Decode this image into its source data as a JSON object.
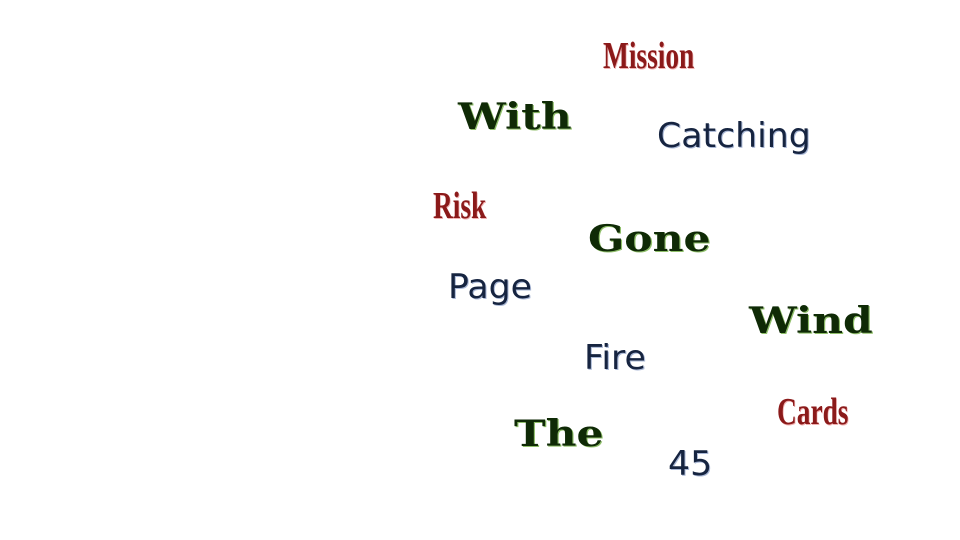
{
  "word_cloud": {
    "colors": {
      "red": "#8b1a1a",
      "green": "#0f2a06",
      "navy": "#162440"
    },
    "words": [
      {
        "id": "mission",
        "text": "Mission",
        "style": "red"
      },
      {
        "id": "with",
        "text": "With",
        "style": "green"
      },
      {
        "id": "catching",
        "text": "Catching",
        "style": "navy"
      },
      {
        "id": "risk",
        "text": "Risk",
        "style": "red"
      },
      {
        "id": "gone",
        "text": "Gone",
        "style": "green"
      },
      {
        "id": "page",
        "text": "Page",
        "style": "navy"
      },
      {
        "id": "wind",
        "text": "Wind",
        "style": "green"
      },
      {
        "id": "fire",
        "text": "Fire",
        "style": "navy"
      },
      {
        "id": "cards",
        "text": "Cards",
        "style": "red"
      },
      {
        "id": "the",
        "text": "The",
        "style": "green"
      },
      {
        "id": "45",
        "text": "45",
        "style": "navy"
      }
    ]
  }
}
